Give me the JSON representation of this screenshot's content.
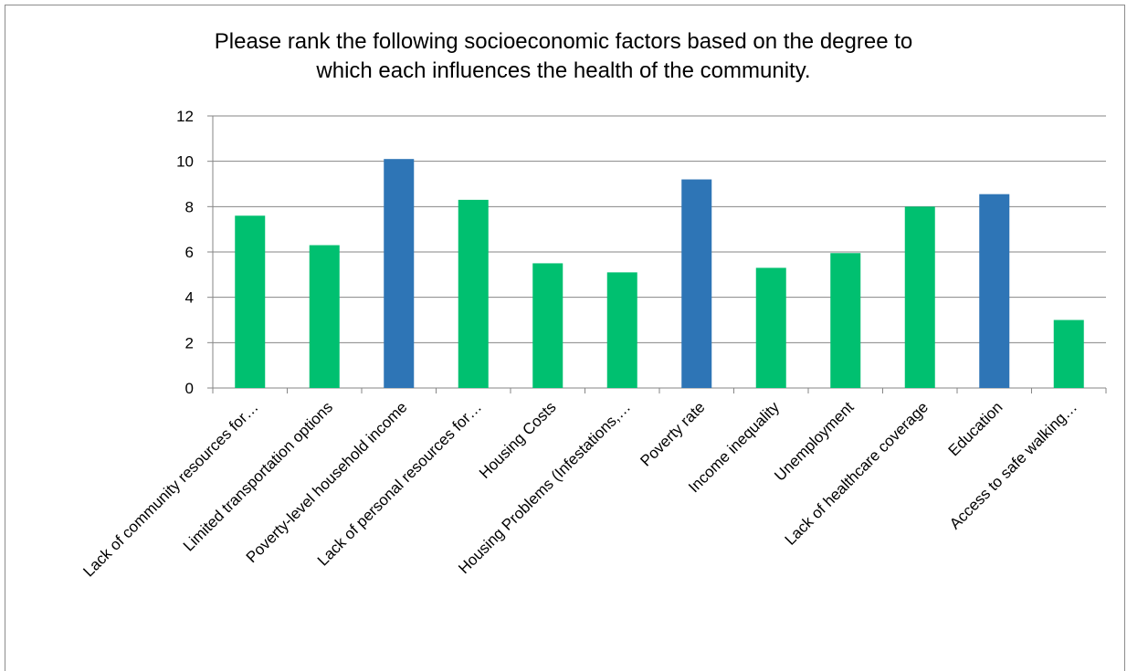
{
  "chart_data": {
    "type": "bar",
    "title_lines": [
      "Please rank the following socioeconomic factors based on the degree to",
      "which each influences the health of the community."
    ],
    "categories": [
      "Lack of community resources for…",
      "Limited transportation options",
      "Poverty-level household income",
      "Lack of personal resources for…",
      "Housing Costs",
      "Housing Problems (Infestations,…",
      "Poverty rate",
      "Income inequality",
      "Unemployment",
      "Lack of healthcare coverage",
      "Education",
      "Access to safe walking…"
    ],
    "values": [
      7.6,
      6.3,
      10.1,
      8.3,
      5.5,
      5.1,
      9.2,
      5.3,
      5.95,
      8.0,
      8.55,
      3.0
    ],
    "highlight": [
      false,
      false,
      true,
      false,
      false,
      false,
      true,
      false,
      false,
      false,
      true,
      false
    ],
    "colors": {
      "default": "#00c070",
      "highlight": "#2e75b6",
      "gridline": "#868686"
    },
    "ylim": [
      0,
      12
    ],
    "yticks": [
      "0",
      "2",
      "4",
      "6",
      "8",
      "10",
      "12"
    ],
    "grid": true,
    "xlabel": "",
    "ylabel": ""
  }
}
